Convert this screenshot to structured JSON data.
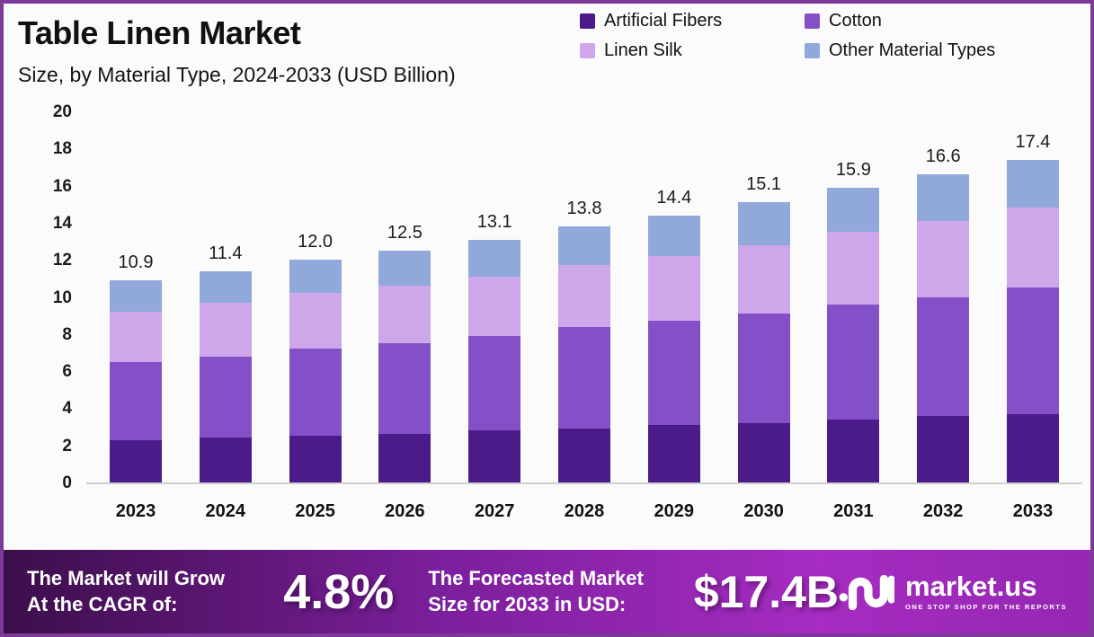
{
  "frame": {
    "border_color": "#7e3a99"
  },
  "header": {
    "title": "Table Linen Market",
    "subtitle": "Size, by Material Type, 2024-2033 (USD Billion)"
  },
  "chart_data": {
    "type": "bar",
    "stacked": true,
    "title": "Table Linen Market Size, by Material Type, 2024-2033 (USD Billion)",
    "categories": [
      "2023",
      "2024",
      "2025",
      "2026",
      "2027",
      "2028",
      "2029",
      "2030",
      "2031",
      "2032",
      "2033"
    ],
    "series": [
      {
        "name": "Artificial Fibers",
        "color": "#4b1b8a",
        "values": [
          2.3,
          2.4,
          2.5,
          2.6,
          2.8,
          2.9,
          3.1,
          3.2,
          3.4,
          3.6,
          3.7
        ]
      },
      {
        "name": "Cotton",
        "color": "#8450c8",
        "values": [
          4.2,
          4.4,
          4.7,
          4.9,
          5.1,
          5.5,
          5.6,
          5.9,
          6.2,
          6.4,
          6.8
        ]
      },
      {
        "name": "Linen Silk",
        "color": "#cda7ea",
        "values": [
          2.7,
          2.9,
          3.0,
          3.1,
          3.2,
          3.3,
          3.5,
          3.7,
          3.9,
          4.1,
          4.3
        ]
      },
      {
        "name": "Other Material Types",
        "color": "#90a8da",
        "values": [
          1.7,
          1.7,
          1.8,
          1.9,
          2.0,
          2.1,
          2.2,
          2.3,
          2.4,
          2.5,
          2.6
        ]
      }
    ],
    "totals": [
      "10.9",
      "11.4",
      "12.0",
      "12.5",
      "13.1",
      "13.8",
      "14.4",
      "15.1",
      "15.9",
      "16.6",
      "17.4"
    ],
    "ylim": [
      0,
      20
    ],
    "ytick_step": 2,
    "grid": false,
    "legend_position": "top-right",
    "unit": "USD Billion"
  },
  "footer": {
    "cagr_label_line1": "The Market will Grow",
    "cagr_label_line2": "At the CAGR of:",
    "cagr_value": "4.8%",
    "forecast_label_line1": "The Forecasted Market",
    "forecast_label_line2": "Size for 2033 in USD:",
    "forecast_value": "$17.4B",
    "brand_name": "market.us",
    "brand_tagline": "ONE STOP SHOP FOR THE REPORTS"
  }
}
